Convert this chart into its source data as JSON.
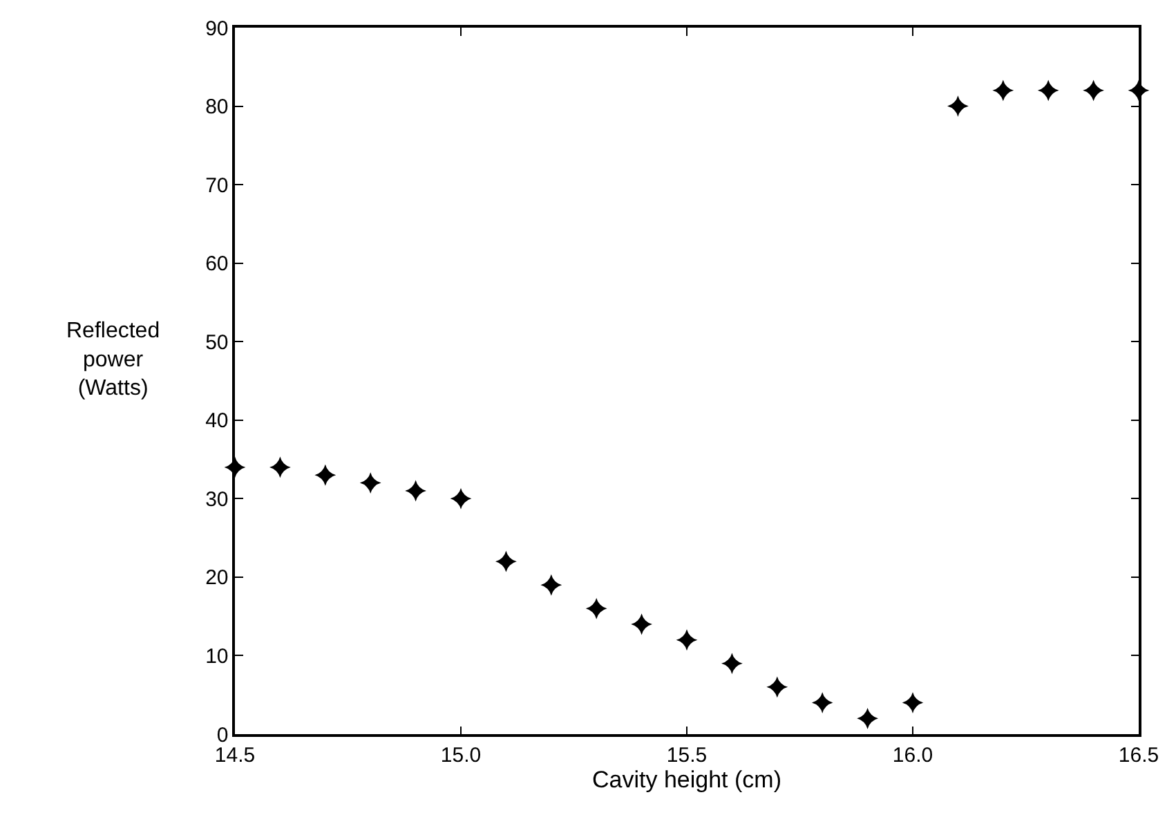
{
  "chart_data": {
    "type": "scatter",
    "xlabel": "Cavity height (cm)",
    "ylabel": "Reflected\npower\n(Watts)",
    "x": [
      14.5,
      14.6,
      14.7,
      14.8,
      14.9,
      15.0,
      15.1,
      15.2,
      15.3,
      15.4,
      15.5,
      15.6,
      15.7,
      15.8,
      15.9,
      16.0,
      16.1,
      16.2,
      16.3,
      16.4,
      16.5
    ],
    "series": [
      {
        "color": "#000000",
        "values": [
          34,
          34,
          33,
          32,
          31,
          30,
          22,
          19,
          16,
          14,
          12,
          9,
          6,
          4,
          2,
          4,
          80,
          82,
          82,
          82,
          82
        ]
      }
    ],
    "xlim": [
      14.5,
      16.5
    ],
    "xticks": [
      {
        "value": 14.5,
        "label": "14.5"
      },
      {
        "value": 15.0,
        "label": "15.0"
      },
      {
        "value": 15.5,
        "label": "15.5"
      },
      {
        "value": 16.0,
        "label": "16.0"
      },
      {
        "value": 16.5,
        "label": "16.5"
      }
    ],
    "ylim": [
      0,
      90
    ],
    "yticks": [
      0,
      10,
      20,
      30,
      40,
      50,
      60,
      70,
      80,
      90
    ],
    "marker": "cross"
  }
}
